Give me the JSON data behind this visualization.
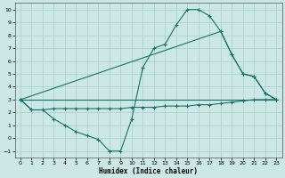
{
  "xlabel": "Humidex (Indice chaleur)",
  "bg_color": "#cce8e5",
  "grid_color": "#aacfcc",
  "line_color": "#1a7068",
  "xlim": [
    -0.5,
    23.5
  ],
  "ylim": [
    -1.5,
    10.5
  ],
  "xticks": [
    0,
    1,
    2,
    3,
    4,
    5,
    6,
    7,
    8,
    9,
    10,
    11,
    12,
    13,
    14,
    15,
    16,
    17,
    18,
    19,
    20,
    21,
    22,
    23
  ],
  "yticks": [
    -1,
    0,
    1,
    2,
    3,
    4,
    5,
    6,
    7,
    8,
    9,
    10
  ],
  "curve1_x": [
    0,
    1,
    2,
    3,
    4,
    5,
    6,
    7,
    8,
    9,
    10,
    11,
    12,
    13,
    14,
    15,
    16,
    17,
    18,
    19,
    20,
    21,
    22,
    23
  ],
  "curve1_y": [
    3.0,
    2.2,
    2.2,
    1.5,
    1.0,
    0.5,
    0.2,
    -0.1,
    -1.0,
    -1.0,
    1.5,
    5.5,
    7.0,
    7.3,
    8.8,
    10.0,
    10.0,
    9.5,
    8.3,
    6.5,
    5.0,
    4.8,
    3.5,
    3.0
  ],
  "curve2_x": [
    0,
    23
  ],
  "curve2_y": [
    3.0,
    3.0
  ],
  "curve3_x": [
    0,
    1,
    2,
    3,
    4,
    5,
    6,
    7,
    8,
    9,
    10,
    11,
    12,
    13,
    14,
    15,
    16,
    17,
    18,
    19,
    20,
    21,
    22,
    23
  ],
  "curve3_y": [
    3.0,
    2.2,
    2.2,
    2.3,
    2.3,
    2.3,
    2.3,
    2.3,
    2.3,
    2.3,
    2.4,
    2.4,
    2.4,
    2.5,
    2.5,
    2.5,
    2.6,
    2.6,
    2.7,
    2.8,
    2.9,
    3.0,
    3.0,
    3.0
  ],
  "curve4_x": [
    0,
    18,
    19,
    20,
    21,
    22,
    23
  ],
  "curve4_y": [
    3.0,
    8.3,
    6.5,
    5.0,
    4.8,
    3.5,
    3.0
  ]
}
